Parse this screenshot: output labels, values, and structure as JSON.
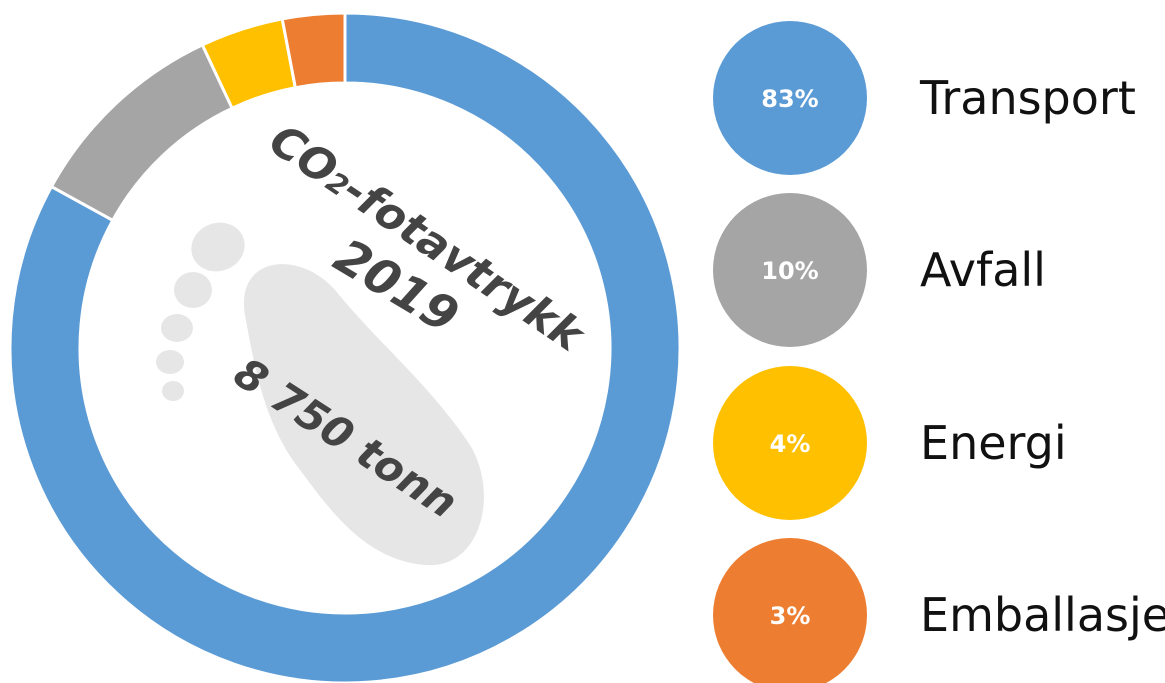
{
  "chart_data": {
    "type": "pie",
    "categories": [
      "Transport",
      "Avfall",
      "Energi",
      "Emballasje"
    ],
    "values": [
      83,
      10,
      4,
      3
    ],
    "value_labels": [
      "83%",
      "10%",
      "4%",
      "3%"
    ],
    "colors": [
      "#5b9bd5",
      "#a5a5a5",
      "#ffc000",
      "#ed7d31"
    ],
    "legend_position": "right",
    "style": "donut"
  },
  "center": {
    "title_prefix": "CO",
    "title_sub": "2",
    "title_suffix": "-fotavtrykk",
    "year": "2019",
    "total": "8 750 tonn"
  },
  "footprint_color": "#e6e6e6",
  "text_color": "#444444"
}
